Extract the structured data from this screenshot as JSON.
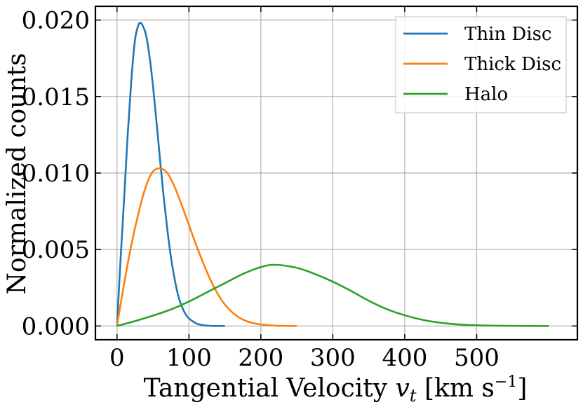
{
  "chart_data": {
    "type": "line",
    "xlabel": "Tangential Velocity v_t [km s^-1]",
    "xlabel_parts": {
      "main": "Tangential Velocity ",
      "var": "v",
      "sub": "t",
      "unit_open": " [km s",
      "sup": "−1",
      "unit_close": "]"
    },
    "ylabel": "Normalized counts",
    "xlim": [
      -30,
      640
    ],
    "ylim": [
      -0.0009,
      0.0209
    ],
    "x_ticks": [
      0,
      100,
      200,
      300,
      400,
      500
    ],
    "x_tick_labels": [
      "0",
      "100",
      "200",
      "300",
      "400",
      "500"
    ],
    "y_ticks": [
      0.0,
      0.005,
      0.01,
      0.015,
      0.02
    ],
    "y_tick_labels": [
      "0.000",
      "0.005",
      "0.010",
      "0.015",
      "0.020"
    ],
    "grid": true,
    "legend_position": "top-right",
    "series": [
      {
        "name": "Thin Disc",
        "color": "#1f77b4",
        "x": [
          0,
          5,
          10,
          15,
          20,
          25,
          30,
          33,
          35,
          40,
          45,
          50,
          55,
          60,
          65,
          70,
          75,
          80,
          85,
          90,
          95,
          100,
          110,
          120,
          130,
          140,
          150
        ],
        "values": [
          0,
          0.0044,
          0.0084,
          0.0126,
          0.0161,
          0.0187,
          0.0197,
          0.0198,
          0.0197,
          0.0191,
          0.0177,
          0.0157,
          0.0133,
          0.0108,
          0.0084,
          0.0063,
          0.0045,
          0.0031,
          0.002,
          0.0013,
          0.0008,
          0.0005,
          0.00017,
          5e-05,
          1e-05,
          0.0,
          0.0
        ]
      },
      {
        "name": "Thick Disc",
        "color": "#ff7f0e",
        "x": [
          0,
          10,
          20,
          30,
          40,
          50,
          60,
          70,
          80,
          90,
          100,
          110,
          120,
          130,
          140,
          150,
          160,
          170,
          180,
          190,
          200,
          210,
          220,
          230,
          240,
          250
        ],
        "values": [
          0,
          0.0028,
          0.0053,
          0.0074,
          0.0091,
          0.0101,
          0.0103,
          0.01,
          0.0091,
          0.0079,
          0.0066,
          0.0053,
          0.0041,
          0.003,
          0.0021,
          0.0014,
          0.0009,
          0.00055,
          0.00032,
          0.00018,
          0.0001,
          5e-05,
          2e-05,
          1e-05,
          0.0,
          0.0
        ]
      },
      {
        "name": "Halo",
        "color": "#2ca02c",
        "x": [
          0,
          25,
          50,
          75,
          100,
          125,
          150,
          175,
          200,
          220,
          250,
          275,
          300,
          325,
          350,
          375,
          400,
          425,
          450,
          475,
          500,
          525,
          550,
          575,
          600
        ],
        "values": [
          0,
          0.00032,
          0.00068,
          0.00108,
          0.0016,
          0.0022,
          0.0028,
          0.0034,
          0.00385,
          0.004,
          0.0038,
          0.0034,
          0.0029,
          0.0023,
          0.00165,
          0.0011,
          0.0007,
          0.0004,
          0.00021,
          0.0001,
          4e-05,
          2e-05,
          1e-05,
          0.0,
          0.0
        ]
      }
    ]
  }
}
